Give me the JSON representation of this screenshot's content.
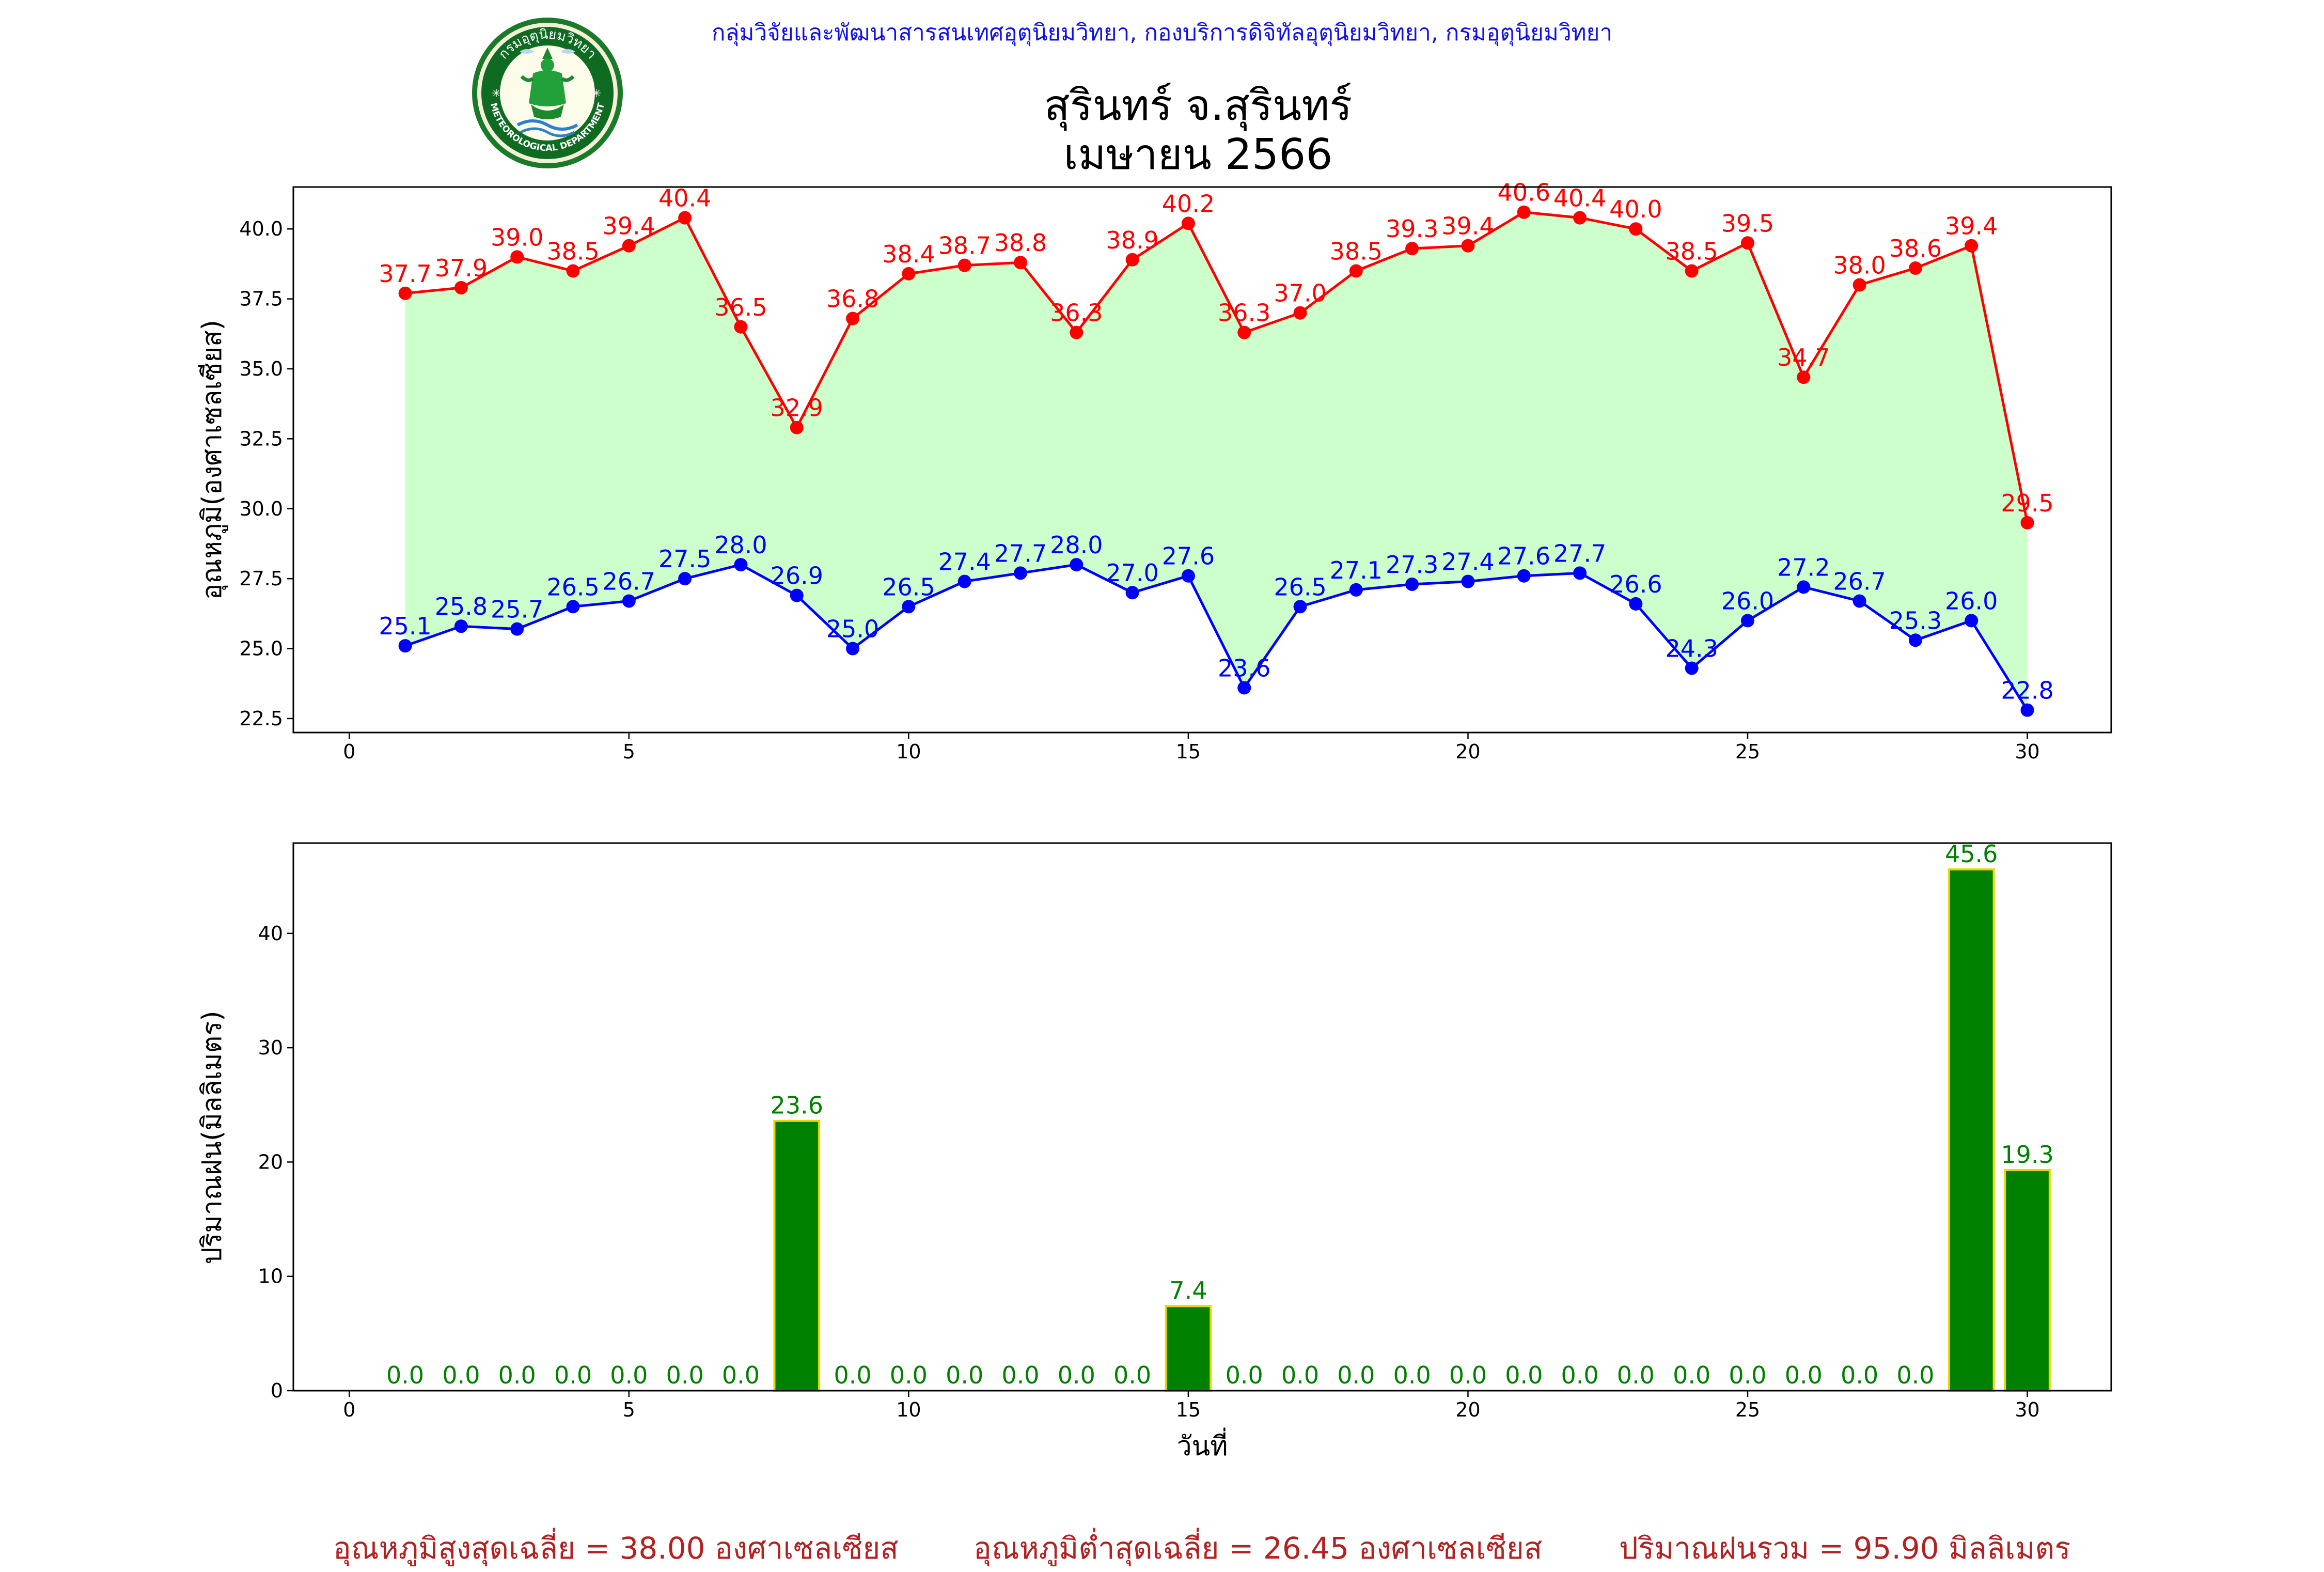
{
  "header": {
    "credit": "กลุ่มวิจัยและพัฒนาสารสนเทศอุตุนิยมวิทยา, กองบริการดิจิทัลอุตุนิยมวิทยา, กรมอุตุนิยมวิทยา",
    "logo_text_top": "กรมอุตุนิยมวิทยา",
    "logo_text_bottom": "METEOROLOGICAL DEPARTMENT",
    "station": "สุรินทร์ จ.สุรินทร์",
    "month": "เมษายน 2566"
  },
  "colors": {
    "max_temp": "#ff0000",
    "min_temp": "#0000ff",
    "fill": "#ccffcc",
    "rain_bar": "#008000",
    "rain_edge": "#e6d800",
    "rain_label": "#008000",
    "footer": "#b22222"
  },
  "chart_data": [
    {
      "type": "line",
      "title": "",
      "xlabel": "",
      "ylabel": "อุณหภูมิ(องศาเซลเซียส)",
      "x": [
        1,
        2,
        3,
        4,
        5,
        6,
        7,
        8,
        9,
        10,
        11,
        12,
        13,
        14,
        15,
        16,
        17,
        18,
        19,
        20,
        21,
        22,
        23,
        24,
        25,
        26,
        27,
        28,
        29,
        30
      ],
      "xlim": [
        -1,
        31.5
      ],
      "ylim": [
        22,
        41.5
      ],
      "xticks": [
        0,
        5,
        10,
        15,
        20,
        25,
        30
      ],
      "yticks": [
        22.5,
        25.0,
        27.5,
        30.0,
        32.5,
        35.0,
        37.5,
        40.0
      ],
      "fill_between": true,
      "series": [
        {
          "values": [
            37.7,
            37.9,
            39.0,
            38.5,
            39.4,
            40.4,
            36.5,
            32.9,
            36.8,
            38.4,
            38.7,
            38.8,
            36.3,
            38.9,
            40.2,
            36.3,
            37.0,
            38.5,
            39.3,
            39.4,
            40.6,
            40.4,
            40.0,
            38.5,
            39.5,
            34.7,
            38.0,
            38.6,
            39.4,
            29.5
          ]
        },
        {
          "values": [
            25.1,
            25.8,
            25.7,
            26.5,
            26.7,
            27.5,
            28.0,
            26.9,
            25.0,
            26.5,
            27.4,
            27.7,
            28.0,
            27.0,
            27.6,
            23.6,
            26.5,
            27.1,
            27.3,
            27.4,
            27.6,
            27.7,
            26.6,
            24.3,
            26.0,
            27.2,
            26.7,
            25.3,
            26.0,
            22.8
          ]
        }
      ]
    },
    {
      "type": "bar",
      "title": "",
      "xlabel": "วันที่",
      "ylabel": "ปริมาณฝน(มิลลิเมตร)",
      "x": [
        1,
        2,
        3,
        4,
        5,
        6,
        7,
        8,
        9,
        10,
        11,
        12,
        13,
        14,
        15,
        16,
        17,
        18,
        19,
        20,
        21,
        22,
        23,
        24,
        25,
        26,
        27,
        28,
        29,
        30
      ],
      "xlim": [
        -1,
        31.5
      ],
      "ylim": [
        0,
        47.9
      ],
      "xticks": [
        0,
        5,
        10,
        15,
        20,
        25,
        30
      ],
      "yticks": [
        0,
        10,
        20,
        30,
        40
      ],
      "values": [
        0.0,
        0.0,
        0.0,
        0.0,
        0.0,
        0.0,
        0.0,
        23.6,
        0.0,
        0.0,
        0.0,
        0.0,
        0.0,
        0.0,
        7.4,
        0.0,
        0.0,
        0.0,
        0.0,
        0.0,
        0.0,
        0.0,
        0.0,
        0.0,
        0.0,
        0.0,
        0.0,
        0.0,
        45.6,
        19.3
      ]
    }
  ],
  "footer": {
    "avg_max": "อุณหภูมิสูงสุดเฉลี่ย = 38.00 องศาเซลเซียส",
    "avg_min": "อุณหภูมิต่ำสุดเฉลี่ย = 26.45 องศาเซลเซียส",
    "rain_total": "ปริมาณฝนรวม = 95.90 มิลลิเมตร"
  }
}
